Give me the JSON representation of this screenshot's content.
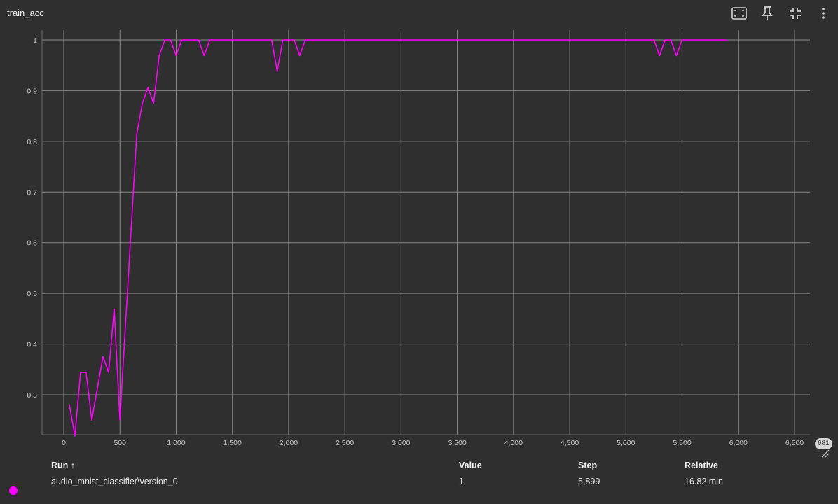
{
  "panel": {
    "title": "train_acc"
  },
  "toolbar": {
    "icons": [
      "fit-domain-icon",
      "pin-icon",
      "collapse-icon",
      "more-vert-icon"
    ]
  },
  "colors": {
    "background": "#2f2f2f",
    "grid": "#8a8a8a",
    "series": "#ff00ff"
  },
  "chart_data": {
    "type": "line",
    "title": "train_acc",
    "xlabel": "",
    "ylabel": "",
    "xlim": [
      -200,
      6700
    ],
    "ylim": [
      0.22,
      1.02
    ],
    "x_ticks": [
      "0",
      "500",
      "1,000",
      "1,500",
      "2,000",
      "2,500",
      "3,000",
      "3,500",
      "4,000",
      "4,500",
      "5,000",
      "5,500",
      "6,000",
      "6,500"
    ],
    "x_tick_values": [
      0,
      500,
      1000,
      1500,
      2000,
      2500,
      3000,
      3500,
      4000,
      4500,
      5000,
      5500,
      6000,
      6500
    ],
    "y_ticks": [
      "0.3",
      "0.4",
      "0.5",
      "0.6",
      "0.7",
      "0.8",
      "0.9",
      "1"
    ],
    "y_tick_values": [
      0.3,
      0.4,
      0.5,
      0.6,
      0.7,
      0.8,
      0.9,
      1.0
    ],
    "grid": true,
    "series": [
      {
        "x": [
          49,
          99,
          149,
          199,
          249,
          299,
          349,
          399,
          449,
          499,
          549,
          599,
          649,
          699,
          749,
          799,
          849,
          899,
          949,
          999,
          1049,
          1099,
          1149,
          1199,
          1249,
          1299,
          1349,
          1399,
          1449,
          1499,
          1549,
          1599,
          1649,
          1699,
          1749,
          1799,
          1849,
          1899,
          1949,
          1999,
          2049,
          2099,
          2149,
          2199,
          2249,
          2299,
          2349,
          2399,
          2449,
          2499,
          2549,
          2599,
          2649,
          2699,
          2749,
          2799,
          2849,
          2899,
          2949,
          2999,
          3049,
          3099,
          3149,
          3199,
          3249,
          3299,
          3349,
          3399,
          3449,
          3499,
          3549,
          3599,
          3649,
          3699,
          3749,
          3799,
          3849,
          3899,
          3949,
          3999,
          4049,
          4099,
          4149,
          4199,
          4249,
          4299,
          4349,
          4399,
          4449,
          4499,
          4549,
          4599,
          4649,
          4699,
          4749,
          4799,
          4849,
          4899,
          4949,
          4999,
          5049,
          5099,
          5149,
          5199,
          5249,
          5299,
          5349,
          5399,
          5449,
          5499,
          5549,
          5599,
          5649,
          5699,
          5749,
          5799,
          5849,
          5899
        ],
        "y": [
          0.281,
          0.219,
          0.344,
          0.344,
          0.25,
          0.313,
          0.375,
          0.344,
          0.469,
          0.25,
          0.438,
          0.625,
          0.813,
          0.875,
          0.906,
          0.875,
          0.969,
          1.0,
          1.0,
          0.969,
          1.0,
          1.0,
          1.0,
          1.0,
          0.969,
          1.0,
          1.0,
          1.0,
          1.0,
          1.0,
          1.0,
          1.0,
          1.0,
          1.0,
          1.0,
          1.0,
          1.0,
          0.938,
          1.0,
          1.0,
          1.0,
          0.969,
          1.0,
          1.0,
          1.0,
          1.0,
          1.0,
          1.0,
          1.0,
          1.0,
          1.0,
          1.0,
          1.0,
          1.0,
          1.0,
          1.0,
          1.0,
          1.0,
          1.0,
          1.0,
          1.0,
          1.0,
          1.0,
          1.0,
          1.0,
          1.0,
          1.0,
          1.0,
          1.0,
          1.0,
          1.0,
          1.0,
          1.0,
          1.0,
          1.0,
          1.0,
          1.0,
          1.0,
          1.0,
          1.0,
          1.0,
          1.0,
          1.0,
          1.0,
          1.0,
          1.0,
          1.0,
          1.0,
          1.0,
          1.0,
          1.0,
          1.0,
          1.0,
          1.0,
          1.0,
          1.0,
          1.0,
          1.0,
          1.0,
          1.0,
          1.0,
          1.0,
          1.0,
          1.0,
          1.0,
          0.969,
          1.0,
          1.0,
          0.969,
          1.0,
          1.0,
          1.0,
          1.0,
          1.0,
          1.0,
          1.0,
          1.0,
          1.0
        ]
      }
    ],
    "legend": "none"
  },
  "step_badge": "681",
  "table": {
    "headers": {
      "run": "Run ↑",
      "value": "Value",
      "step": "Step",
      "relative": "Relative"
    },
    "rows": [
      {
        "run": "audio_mnist_classifier\\version_0",
        "value": "1",
        "step": "5,899",
        "relative": "16.82 min"
      }
    ]
  }
}
